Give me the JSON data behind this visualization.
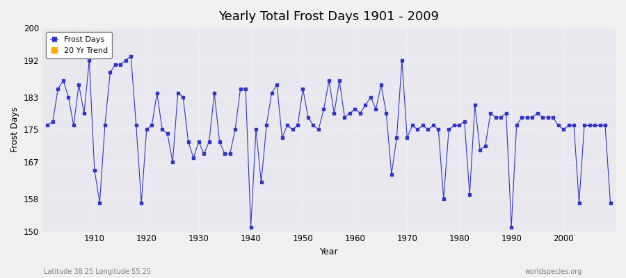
{
  "title": "Yearly Total Frost Days 1901 - 2009",
  "xlabel": "Year",
  "ylabel": "Frost Days",
  "subtitle": "Latitude 38.25 Longitude 55.25",
  "watermark": "worldspecies.org",
  "ylim": [
    150,
    200
  ],
  "xlim": [
    1900,
    2010
  ],
  "yticks": [
    150,
    158,
    167,
    175,
    183,
    192,
    200
  ],
  "xticks": [
    1910,
    1920,
    1930,
    1940,
    1950,
    1960,
    1970,
    1980,
    1990,
    2000
  ],
  "bg_color": "#e8e8ee",
  "line_color": "#3333cc",
  "marker_color": "#3333cc",
  "legend_items": [
    "Frost Days",
    "20 Yr Trend"
  ],
  "legend_colors": [
    "#3333cc",
    "#ffaa00"
  ],
  "years": [
    1901,
    1902,
    1903,
    1904,
    1905,
    1906,
    1907,
    1908,
    1909,
    1910,
    1911,
    1912,
    1913,
    1914,
    1915,
    1916,
    1917,
    1918,
    1919,
    1920,
    1921,
    1922,
    1923,
    1924,
    1925,
    1926,
    1927,
    1928,
    1929,
    1930,
    1931,
    1932,
    1933,
    1934,
    1935,
    1936,
    1937,
    1938,
    1939,
    1940,
    1941,
    1942,
    1943,
    1944,
    1945,
    1946,
    1947,
    1948,
    1949,
    1950,
    1951,
    1952,
    1953,
    1954,
    1955,
    1956,
    1957,
    1958,
    1959,
    1960,
    1961,
    1962,
    1963,
    1964,
    1965,
    1966,
    1967,
    1968,
    1969,
    1970,
    1971,
    1972,
    1973,
    1974,
    1975,
    1976,
    1977,
    1978,
    1979,
    1980,
    1981,
    1982,
    1983,
    1984,
    1985,
    1986,
    1987,
    1988,
    1989,
    1990,
    1991,
    1992,
    1993,
    1994,
    1995,
    1996,
    1997,
    1998,
    1999,
    2000,
    2001,
    2002,
    2003,
    2004,
    2005,
    2006,
    2007,
    2008,
    2009
  ],
  "values": [
    176,
    177,
    185,
    187,
    183,
    176,
    186,
    179,
    192,
    165,
    157,
    176,
    189,
    191,
    191,
    192,
    193,
    176,
    157,
    175,
    176,
    184,
    175,
    174,
    167,
    184,
    183,
    172,
    168,
    172,
    169,
    172,
    184,
    172,
    169,
    169,
    175,
    185,
    185,
    151,
    175,
    162,
    176,
    184,
    186,
    173,
    176,
    175,
    176,
    185,
    178,
    176,
    175,
    180,
    187,
    179,
    187,
    178,
    179,
    180,
    179,
    181,
    183,
    180,
    186,
    179,
    164,
    173,
    192,
    173,
    176,
    175,
    176,
    175,
    176,
    175,
    158,
    175,
    176,
    176,
    177,
    159,
    181,
    170,
    171,
    179,
    178,
    178,
    179,
    151,
    176,
    178,
    178,
    178,
    179,
    178,
    178,
    178,
    176,
    175,
    176,
    176,
    157,
    176,
    176,
    176,
    176,
    176,
    157
  ]
}
